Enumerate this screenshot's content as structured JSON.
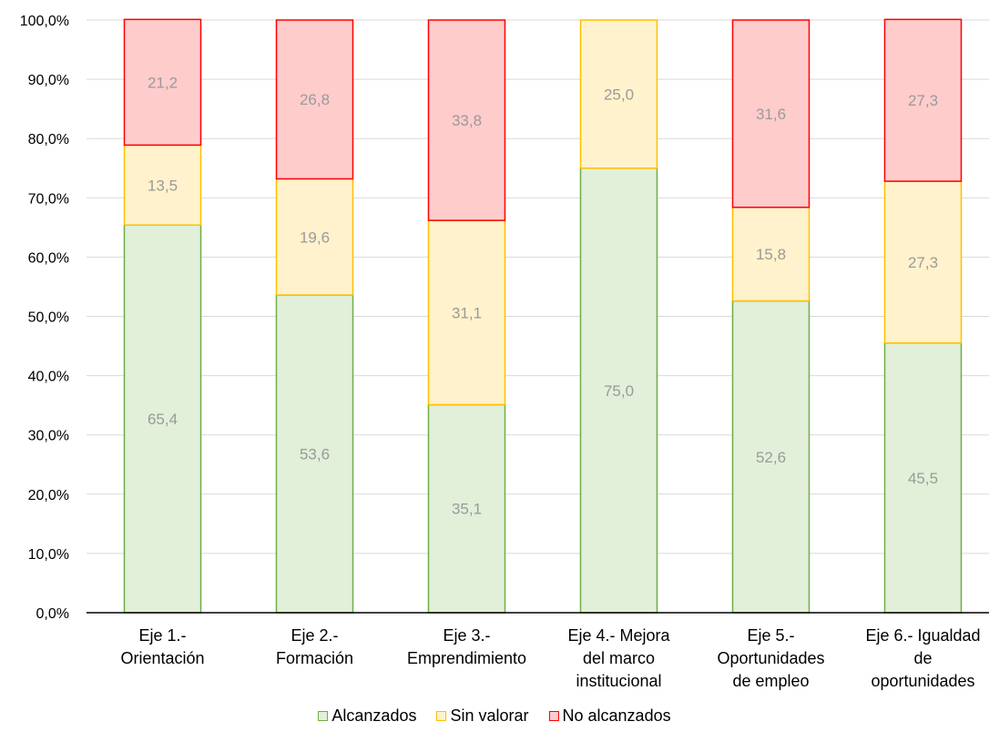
{
  "chart_data": {
    "type": "bar",
    "stacked": true,
    "title": "",
    "xlabel": "",
    "ylabel": "",
    "ylim": [
      0,
      100
    ],
    "y_ticks": [
      "0,0%",
      "10,0%",
      "20,0%",
      "30,0%",
      "40,0%",
      "50,0%",
      "60,0%",
      "70,0%",
      "80,0%",
      "90,0%",
      "100,0%"
    ],
    "y_tick_values": [
      0,
      10,
      20,
      30,
      40,
      50,
      60,
      70,
      80,
      90,
      100
    ],
    "grid": true,
    "legend_position": "bottom",
    "categories": [
      [
        "Eje 1.-",
        "Orientación"
      ],
      [
        "Eje 2.-",
        "Formación"
      ],
      [
        "Eje 3.-",
        "Emprendimiento"
      ],
      [
        "Eje 4.- Mejora",
        "del marco",
        "institucional"
      ],
      [
        "Eje 5.-",
        "Oportunidades",
        "de empleo"
      ],
      [
        "Eje 6.- Igualdad",
        "de",
        "oportunidades"
      ]
    ],
    "series": [
      {
        "name": "Alcanzados",
        "fill": "#e2efd9",
        "stroke": "#70ad47",
        "values": [
          65.4,
          53.6,
          35.1,
          75.0,
          52.6,
          45.5
        ],
        "labels": [
          "65,4",
          "53,6",
          "35,1",
          "75,0",
          "52,6",
          "45,5"
        ]
      },
      {
        "name": "Sin valorar",
        "fill": "#fff2cc",
        "stroke": "#ffc000",
        "values": [
          13.5,
          19.6,
          31.1,
          25.0,
          15.8,
          27.3
        ],
        "labels": [
          "13,5",
          "19,6",
          "31,1",
          "25,0",
          "15,8",
          "27,3"
        ]
      },
      {
        "name": "No alcanzados",
        "fill": "#ffcccc",
        "stroke": "#ff0000",
        "values": [
          21.2,
          26.8,
          33.8,
          0,
          31.6,
          27.3
        ],
        "labels": [
          "21,2",
          "26,8",
          "33,8",
          "",
          "31,6",
          "27,3"
        ]
      }
    ]
  }
}
